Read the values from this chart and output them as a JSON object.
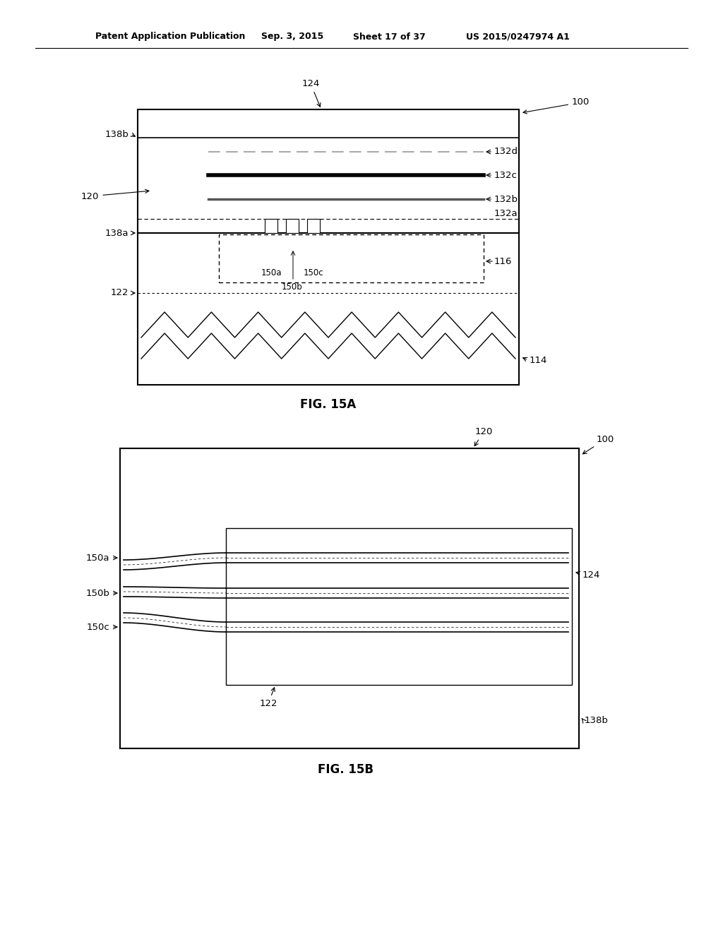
{
  "bg_color": "#ffffff",
  "header_text": "Patent Application Publication",
  "header_date": "Sep. 3, 2015",
  "header_sheet": "Sheet 17 of 37",
  "header_patent": "US 2015/0247974 A1",
  "fig15a_caption": "FIG. 15A",
  "fig15b_caption": "FIG. 15B"
}
